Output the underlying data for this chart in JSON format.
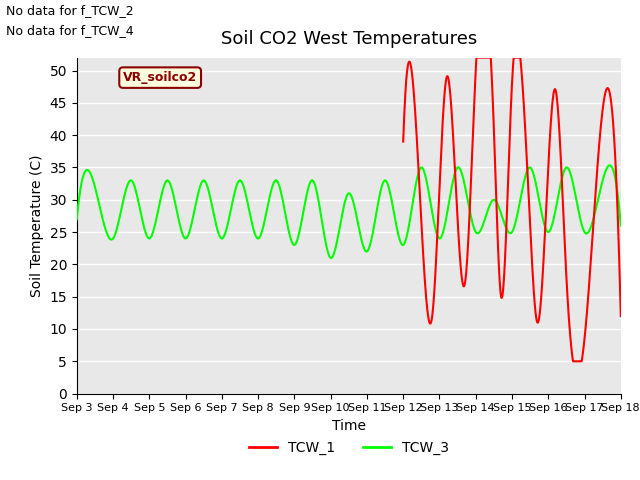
{
  "title": "Soil CO2 West Temperatures",
  "xlabel": "Time",
  "ylabel": "Soil Temperature (C)",
  "xlim": [
    0,
    15
  ],
  "ylim": [
    0,
    52
  ],
  "yticks": [
    0,
    5,
    10,
    15,
    20,
    25,
    30,
    35,
    40,
    45,
    50
  ],
  "xtick_labels": [
    "Sep 3",
    "Sep 4",
    "Sep 5",
    "Sep 6",
    "Sep 7",
    "Sep 8",
    "Sep 9",
    "Sep 10",
    "Sep 11",
    "Sep 12",
    "Sep 13",
    "Sep 14",
    "Sep 15",
    "Sep 16",
    "Sep 17",
    "Sep 18"
  ],
  "no_data_text": [
    "No data for f_TCW_2",
    "No data for f_TCW_4"
  ],
  "vr_label": "VR_soilco2",
  "bg_color": "#e8e8e8",
  "tcw1_color": "red",
  "tcw3_color": "lime",
  "legend_labels": [
    "TCW_1",
    "TCW_3"
  ]
}
